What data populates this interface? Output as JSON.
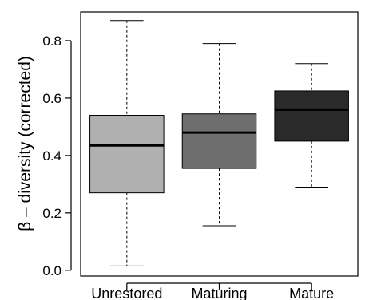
{
  "chart_data": {
    "type": "boxplot",
    "title": "",
    "xlabel": "",
    "ylabel": "β – diversity (corrected)",
    "ylim": [
      -0.02,
      0.9
    ],
    "yticks": [
      "0.0",
      "0.2",
      "0.4",
      "0.6",
      "0.8"
    ],
    "categories": [
      "Unrestored",
      "Maturing",
      "Mature"
    ],
    "boxes": [
      {
        "category": "Unrestored",
        "min": 0.015,
        "q1": 0.27,
        "median": 0.435,
        "q3": 0.54,
        "max": 0.87,
        "color": "#b0b0b0"
      },
      {
        "category": "Maturing",
        "min": 0.155,
        "q1": 0.355,
        "median": 0.48,
        "q3": 0.545,
        "max": 0.79,
        "color": "#6e6e6e"
      },
      {
        "category": "Mature",
        "min": 0.29,
        "q1": 0.45,
        "median": 0.56,
        "q3": 0.625,
        "max": 0.72,
        "color": "#2a2a2a"
      }
    ],
    "grid": false,
    "legend": "none"
  }
}
